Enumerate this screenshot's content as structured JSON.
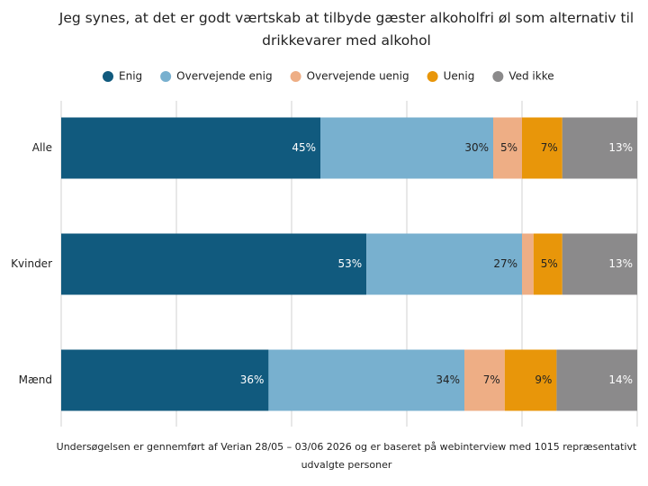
{
  "chart_data": {
    "type": "stacked-barh",
    "title": "Jeg synes, at det er godt værtskab at tilbyde gæster alkoholfri øl som alternativ til drikkevarer med alkohol",
    "footnote": "Undersøgelsen er gennemført af Verian 28/05 – 03/06 2026 og er baseret på webinterview med 1015 repræsentativt udvalgte personer",
    "categories": [
      "Alle",
      "Kvinder",
      "Mænd"
    ],
    "series": [
      {
        "name": "Enig",
        "color": "#115a7e",
        "values": [
          45,
          53,
          36
        ],
        "value_labels": [
          "45%",
          "53%",
          "36%"
        ]
      },
      {
        "name": "Overvejende enig",
        "color": "#78b0cf",
        "values": [
          30,
          27,
          34
        ],
        "value_labels": [
          "30%",
          "27%",
          "34%"
        ]
      },
      {
        "name": "Overvejende uenig",
        "color": "#eeae85",
        "values": [
          5,
          2,
          7
        ],
        "value_labels": [
          "5%",
          null,
          "7%"
        ]
      },
      {
        "name": "Uenig",
        "color": "#e8960a",
        "values": [
          7,
          5,
          9
        ],
        "value_labels": [
          "7%",
          "5%",
          "9%"
        ]
      },
      {
        "name": "Ved ikke",
        "color": "#8b8a8b",
        "values": [
          13,
          13,
          14
        ],
        "value_labels": [
          "13%",
          "13%",
          "14%"
        ]
      }
    ],
    "xlim": [
      0,
      100
    ],
    "xticks": [
      0,
      20,
      40,
      60,
      80,
      100
    ],
    "grid": true,
    "legend": "top"
  }
}
